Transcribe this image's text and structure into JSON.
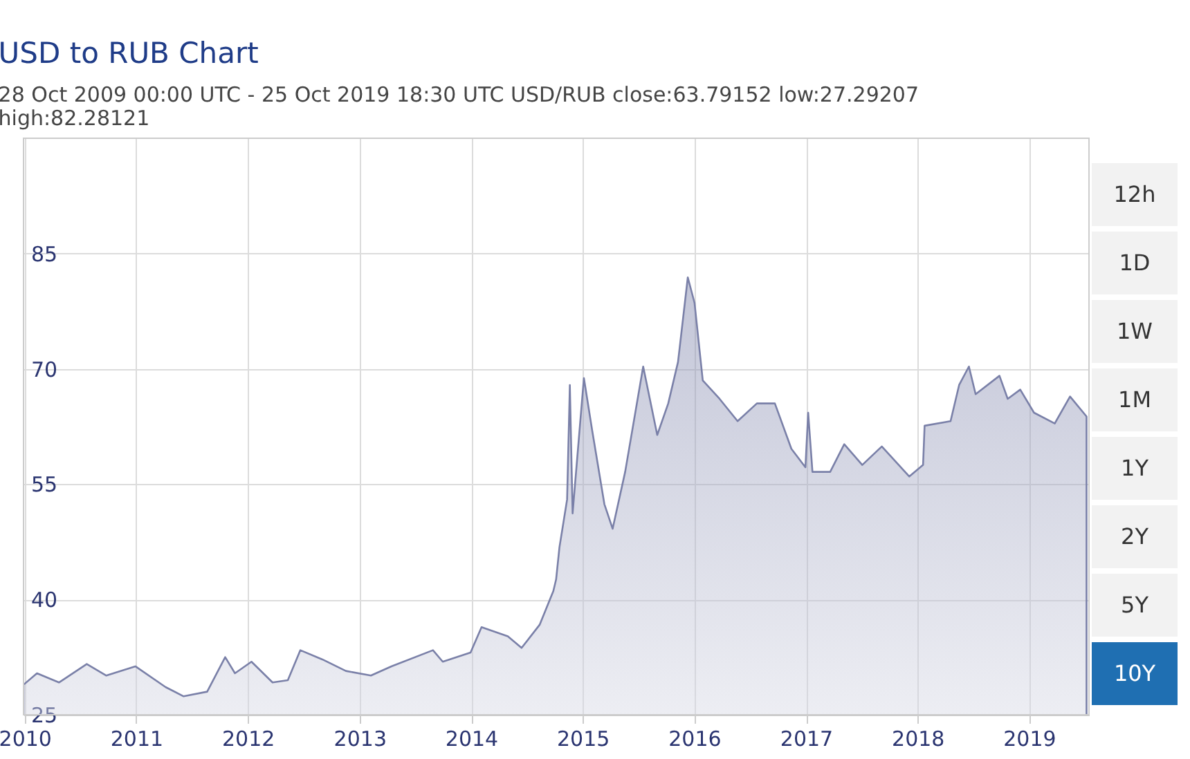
{
  "chart_data": {
    "type": "area",
    "title": "USD to RUB Chart",
    "subtitle": [
      "28 Oct 2009 00:00 UTC - 25 Oct 2019 18:30 UTC    USD/RUB close:63.79152 low:27.29207",
      "high:82.28121"
    ],
    "x": [
      "2009-12-28",
      "2010-02-10",
      "2010-04-23",
      "2010-07-23",
      "2010-09-25",
      "2010-12-29",
      "2011-04-07",
      "2011-06-05",
      "2011-08-21",
      "2011-10-19",
      "2011-11-20",
      "2012-01-13",
      "2012-03-22",
      "2012-05-11",
      "2012-06-21",
      "2012-09-01",
      "2012-11-17",
      "2013-02-07",
      "2013-04-15",
      "2013-08-29",
      "2013-09-30",
      "2013-12-30",
      "2014-02-04",
      "2014-05-01",
      "2014-06-15",
      "2014-08-13",
      "2014-09-27",
      "2014-10-06",
      "2014-10-17",
      "2014-11-11",
      "2014-11-20",
      "2014-11-29",
      "2015-01-05",
      "2015-02-01",
      "2015-03-13",
      "2015-04-09",
      "2015-05-20",
      "2015-07-18",
      "2015-09-02",
      "2015-10-08",
      "2015-11-09",
      "2015-12-11",
      "2016-01-02",
      "2016-01-29",
      "2016-03-24",
      "2016-05-22",
      "2016-07-24",
      "2016-09-21",
      "2016-11-14",
      "2016-12-30",
      "2017-01-08",
      "2017-01-22",
      "2017-03-21",
      "2017-05-06",
      "2017-07-04",
      "2017-09-06",
      "2017-12-05",
      "2018-01-19",
      "2018-01-24",
      "2018-04-19",
      "2018-05-17",
      "2018-06-18",
      "2018-07-10",
      "2018-09-26",
      "2018-10-23",
      "2018-12-03",
      "2019-01-17",
      "2019-03-26",
      "2019-05-15",
      "2019-07-08"
    ],
    "series": [
      {
        "color": "#7a80a8",
        "values": [
          28.9,
          30.4,
          29.2,
          31.6,
          30.1,
          31.3,
          28.6,
          27.4,
          28.0,
          32.5,
          30.4,
          31.9,
          29.2,
          29.5,
          33.4,
          32.2,
          30.7,
          30.1,
          31.3,
          33.4,
          31.9,
          33.1,
          36.4,
          35.2,
          33.7,
          36.7,
          41.1,
          42.6,
          46.8,
          53.0,
          67.9,
          51.2,
          68.8,
          62.0,
          52.4,
          49.2,
          56.6,
          70.3,
          61.4,
          65.5,
          70.9,
          81.9,
          78.6,
          68.5,
          66.1,
          63.2,
          65.5,
          65.5,
          59.6,
          57.2,
          64.3,
          56.6,
          56.6,
          60.2,
          57.5,
          59.9,
          56.0,
          57.5,
          62.6,
          63.2,
          67.9,
          70.3,
          66.7,
          69.1,
          66.1,
          67.3,
          64.3,
          62.9,
          66.4,
          63.8
        ]
      }
    ],
    "xlim": [
      "2009-12-28",
      "2019-07-16"
    ],
    "xticks": [
      {
        "value": "2010-01-01",
        "label": "2010"
      },
      {
        "value": "2011-01-01",
        "label": "2011"
      },
      {
        "value": "2012-01-01",
        "label": "2012"
      },
      {
        "value": "2013-01-01",
        "label": "2013"
      },
      {
        "value": "2014-01-01",
        "label": "2014"
      },
      {
        "value": "2015-01-01",
        "label": "2015"
      },
      {
        "value": "2016-01-01",
        "label": "2016"
      },
      {
        "value": "2017-01-01",
        "label": "2017"
      },
      {
        "value": "2018-01-01",
        "label": "2018"
      },
      {
        "value": "2019-01-01",
        "label": "2019"
      }
    ],
    "ylim": [
      25,
      100
    ],
    "yticks": [
      25,
      40,
      55,
      70,
      85
    ],
    "grid": true,
    "annotations": [
      "12h",
      "1D",
      "1W",
      "1M",
      "1Y",
      "2Y",
      "5Y",
      "10Y"
    ]
  }
}
